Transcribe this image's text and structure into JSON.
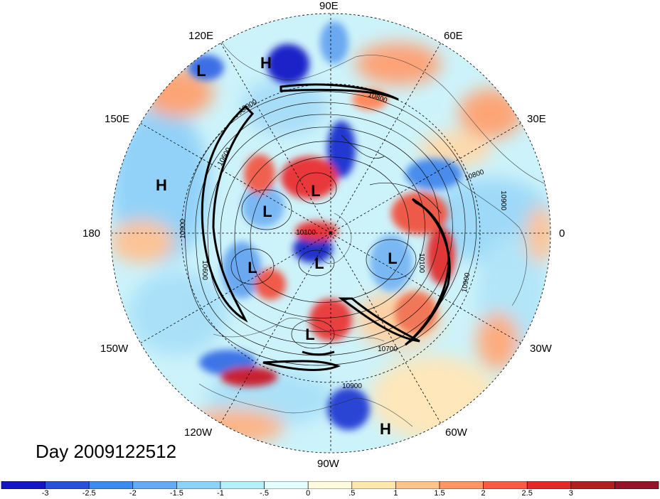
{
  "day_label": "Day 2009122512",
  "longitude_labels": {
    "deg90e": "90E",
    "deg120e": "120E",
    "deg60e": "60E",
    "deg150e": "150E",
    "deg30e": "30E",
    "deg180": "180",
    "deg0": "0",
    "deg150w": "150W",
    "deg30w": "30W",
    "deg120w": "120W",
    "deg60w": "60W",
    "deg90w": "90W"
  },
  "pressure_centers": [
    {
      "type": "H",
      "region": "east-asia-north"
    },
    {
      "type": "L",
      "region": "east-asia-west"
    },
    {
      "type": "H",
      "region": "north-pacific"
    },
    {
      "type": "L",
      "region": "arctic-siberia"
    },
    {
      "type": "L",
      "region": "arctic-pacific"
    },
    {
      "type": "L",
      "region": "alaska"
    },
    {
      "type": "L",
      "region": "canada-arctic"
    },
    {
      "type": "L",
      "region": "europe-atlantic"
    },
    {
      "type": "L",
      "region": "hudson-bay"
    },
    {
      "type": "H",
      "region": "caribbean"
    }
  ],
  "contour_labels": [
    "10800",
    "10900",
    "10600",
    "10100",
    "10900",
    "10800",
    "10900",
    "10100",
    "10900",
    "10700",
    "10900",
    "10600"
  ],
  "colorbar": {
    "colors": [
      "#1414c8",
      "#2850dc",
      "#3c8cf0",
      "#64aaf5",
      "#8cd2fa",
      "#b4f0fa",
      "#e1ffff",
      "#fffadc",
      "#ffe6aa",
      "#ffc38c",
      "#ff9664",
      "#ff5a46",
      "#e62828",
      "#b41e1e",
      "#961428"
    ],
    "ticks": [
      "-3",
      "-2.5",
      "-2",
      "-1.5",
      "-1",
      "-.5",
      "0",
      ".5",
      "1",
      "1.5",
      "2",
      "2.5",
      "3"
    ]
  }
}
